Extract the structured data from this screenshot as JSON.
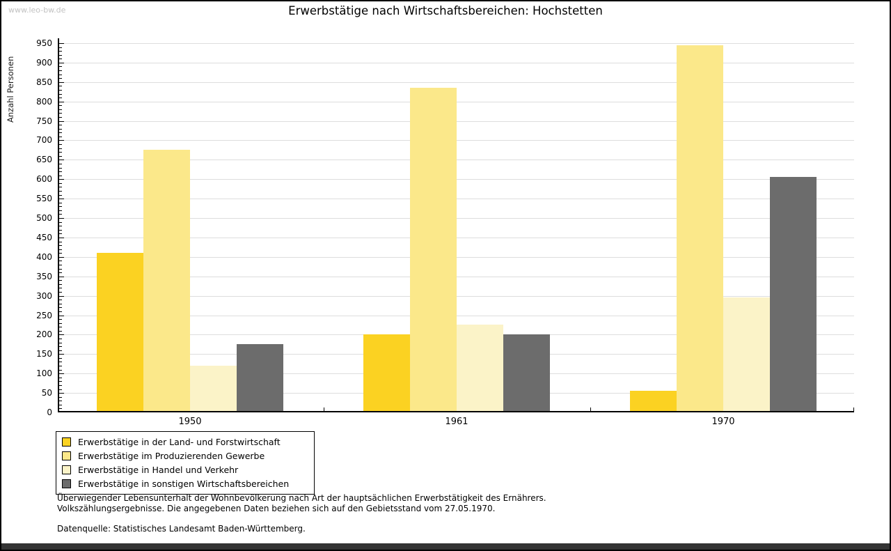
{
  "watermark": "www.leo-bw.de",
  "title": "Erwerbstätige nach Wirtschaftsbereichen: Hochstetten",
  "chart_data": {
    "type": "bar",
    "title": "Erwerbstätige nach Wirtschaftsbereichen: Hochstetten",
    "xlabel": "",
    "ylabel": "Anzahl Personen",
    "categories": [
      "1950",
      "1961",
      "1970"
    ],
    "series": [
      {
        "name": "Erwerbstätige in der Land- und Forstwirtschaft",
        "color": "#fbd222",
        "values": [
          410,
          200,
          55
        ]
      },
      {
        "name": "Erwerbstätige im Produzierenden Gewerbe",
        "color": "#fbe88a",
        "values": [
          675,
          835,
          945
        ]
      },
      {
        "name": "Erwerbstätige in Handel und Verkehr",
        "color": "#fbf3c8",
        "values": [
          120,
          225,
          295
        ]
      },
      {
        "name": "Erwerbstätige in sonstigen Wirtschaftsbereichen",
        "color": "#6c6c6c",
        "values": [
          175,
          200,
          605
        ]
      }
    ],
    "ylim": [
      0,
      950
    ],
    "ytick_step": 50,
    "minor_tick_step": 10,
    "grid": true,
    "legend_position": "bottom-left"
  },
  "footer": {
    "line1": "Überwiegender Lebensunterhalt der Wohnbevölkerung nach Art der hauptsächlichen Erwerbstätigkeit des Ernährers.",
    "line2": "Volkszählungsergebnisse. Die angegebenen Daten beziehen sich auf den Gebietsstand vom 27.05.1970.",
    "source": "Datenquelle: Statistisches Landesamt Baden-Württemberg."
  },
  "colors": {
    "grid": "#dddddd",
    "axis": "#000000",
    "watermark": "#c2c2c2",
    "bottom_bar": "#343434"
  }
}
